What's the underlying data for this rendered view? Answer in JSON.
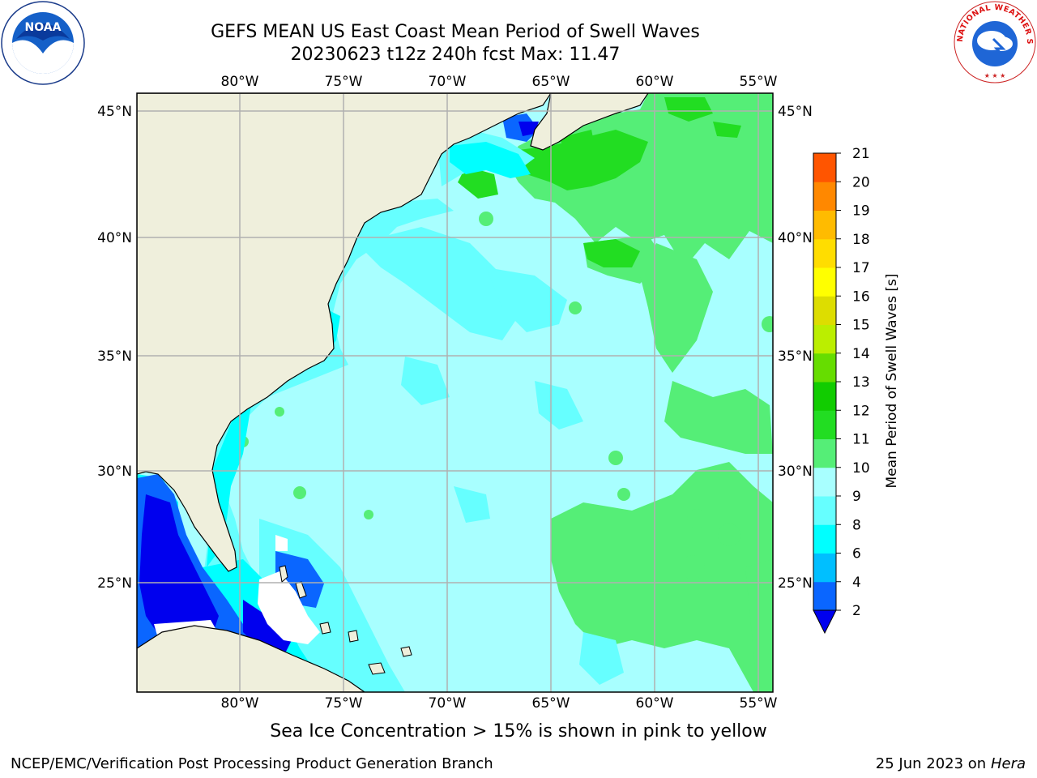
{
  "title_line1": "GEFS MEAN US East Coast Mean Period of Swell Waves",
  "title_line2": "20230623 t12z 240h fcst   Max: 11.47",
  "lon_labels": [
    "80°W",
    "75°W",
    "70°W",
    "65°W",
    "60°W",
    "55°W"
  ],
  "lat_labels": [
    "45°N",
    "40°N",
    "35°N",
    "30°N",
    "25°N"
  ],
  "colorbar": {
    "label": "Mean Period of Swell Waves [s]",
    "ticks": [
      "2",
      "4",
      "6",
      "8",
      "9",
      "10",
      "11",
      "12",
      "13",
      "14",
      "15",
      "16",
      "17",
      "18",
      "19",
      "20",
      "21"
    ],
    "colors": [
      "#0a66ff",
      "#00bfff",
      "#00ffff",
      "#66ffff",
      "#a8ffff",
      "#55ee77",
      "#22dd22",
      "#11cc00",
      "#66dd00",
      "#bbee00",
      "#dddd00",
      "#ffff00",
      "#ffdd00",
      "#ffbb00",
      "#ff8800",
      "#ff5500",
      "#ff2200",
      "#ff0000"
    ],
    "under_color": "#0000ee"
  },
  "note": "Sea Ice Concentration > 15% is shown in pink to yellow",
  "footer_left": "NCEP/EMC/Verification Post Processing Product Generation Branch",
  "footer_right_date": "25 Jun 2023 on",
  "footer_right_machine": "Hera",
  "noaa_logo_text": "NOAA",
  "nws_logo_text": "NATIONAL WEATHER SERVICE"
}
